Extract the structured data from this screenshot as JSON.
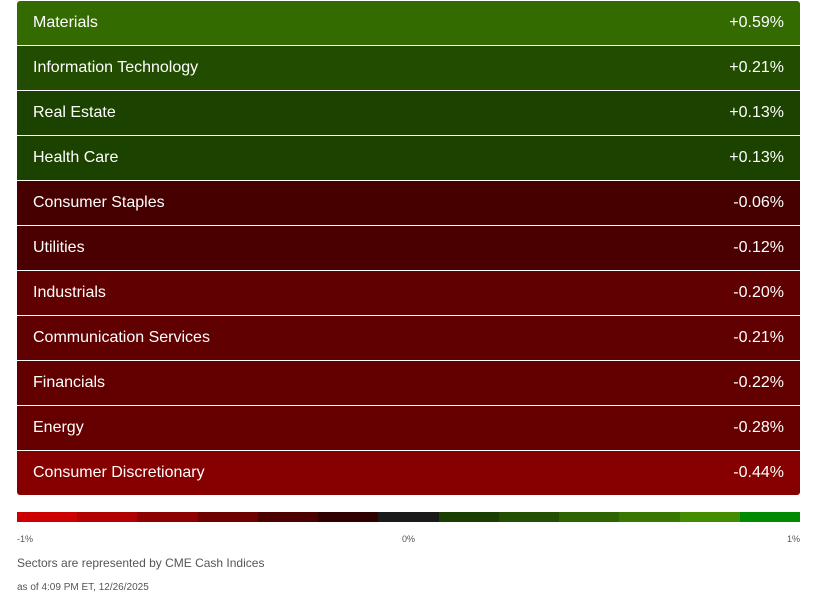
{
  "chart_data": {
    "type": "heatmap",
    "rows": [
      {
        "name": "Materials",
        "value_label": "+0.59%",
        "value": 0.59,
        "color": "#336b00"
      },
      {
        "name": "Information Technology",
        "value_label": "+0.21%",
        "value": 0.21,
        "color": "#224d00"
      },
      {
        "name": "Real Estate",
        "value_label": "+0.13%",
        "value": 0.13,
        "color": "#1c4200"
      },
      {
        "name": "Health Care",
        "value_label": "+0.13%",
        "value": 0.13,
        "color": "#1c4200"
      },
      {
        "name": "Consumer Staples",
        "value_label": "-0.06%",
        "value": -0.06,
        "color": "#470000"
      },
      {
        "name": "Utilities",
        "value_label": "-0.12%",
        "value": -0.12,
        "color": "#4a0000"
      },
      {
        "name": "Industrials",
        "value_label": "-0.20%",
        "value": -0.2,
        "color": "#600000"
      },
      {
        "name": "Communication Services",
        "value_label": "-0.21%",
        "value": -0.21,
        "color": "#600000"
      },
      {
        "name": "Financials",
        "value_label": "-0.22%",
        "value": -0.22,
        "color": "#620000"
      },
      {
        "name": "Energy",
        "value_label": "-0.28%",
        "value": -0.28,
        "color": "#660000"
      },
      {
        "name": "Consumer Discretionary",
        "value_label": "-0.44%",
        "value": -0.44,
        "color": "#860000"
      }
    ],
    "scale": {
      "min_label": "-1%",
      "mid_label": "0%",
      "max_label": "1%",
      "colors": [
        "#cc0000",
        "#b00000",
        "#8f0000",
        "#6e0000",
        "#4d0000",
        "#2e0000",
        "#1a1a1a",
        "#1a3d00",
        "#225000",
        "#2d6400",
        "#387800",
        "#448c00",
        "#008a00"
      ]
    }
  },
  "footer": {
    "source_note": "Sectors are represented by CME Cash Indices",
    "timestamp": "as of 4:09 PM ET, 12/26/2025"
  }
}
